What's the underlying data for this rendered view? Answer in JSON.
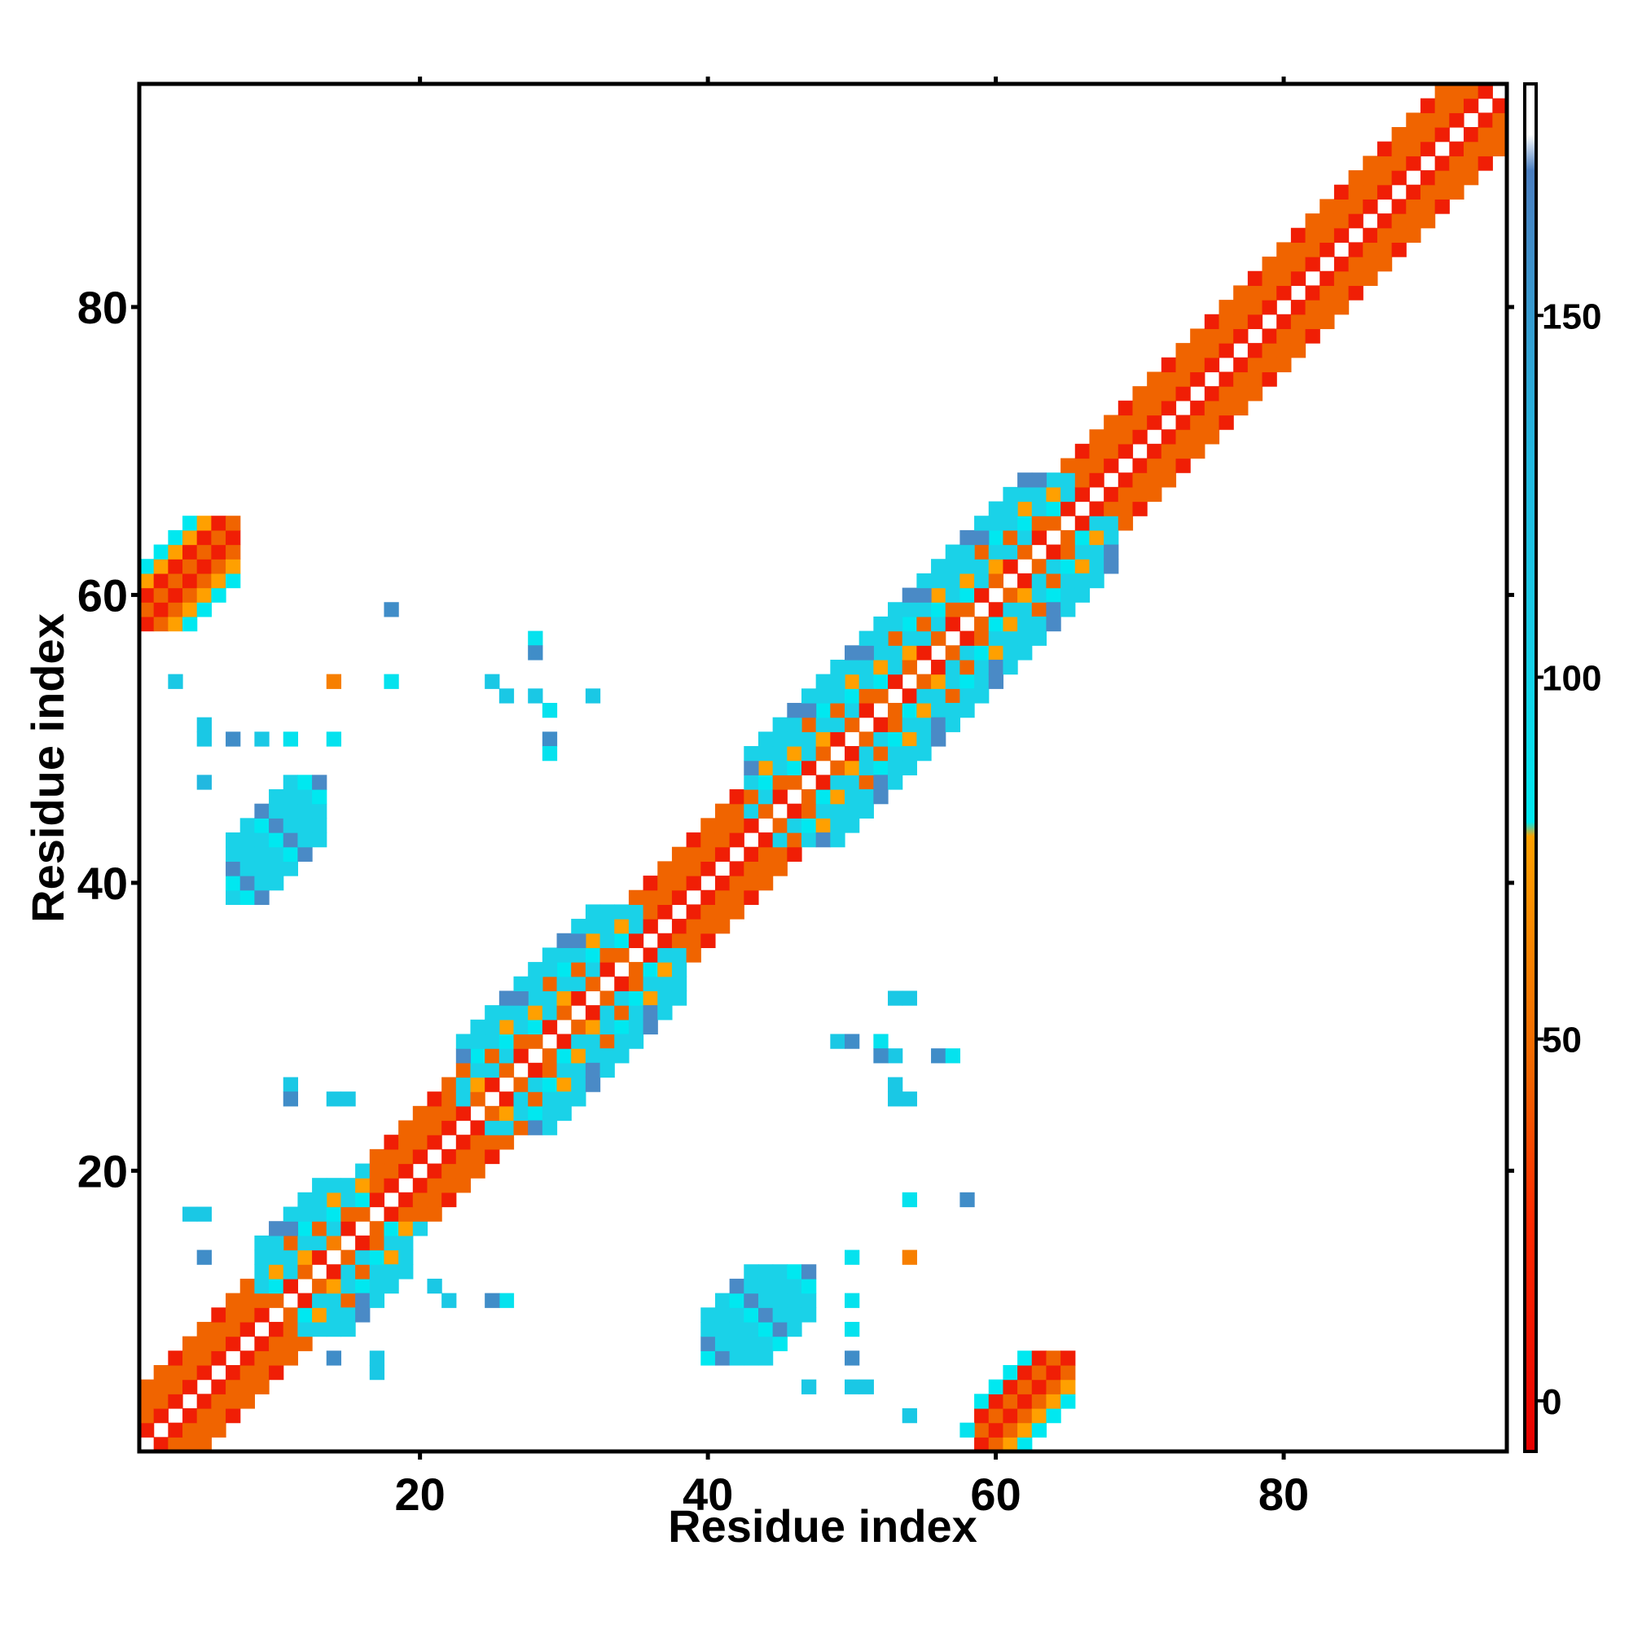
{
  "chart_data": {
    "type": "heatmap",
    "title": "",
    "xlabel": "Residue index",
    "ylabel": "Residue index",
    "xlim": [
      0.5,
      95.5
    ],
    "ylim": [
      0.5,
      95.5
    ],
    "x_ticks": [
      20,
      40,
      60,
      80
    ],
    "y_ticks": [
      20,
      40,
      60,
      80
    ],
    "colorbar": {
      "range": [
        -7,
        182
      ],
      "ticks": [
        0,
        50,
        100,
        150
      ],
      "stops": [
        {
          "v": -7,
          "c": "#e60000"
        },
        {
          "v": 25,
          "c": "#ff2a00"
        },
        {
          "v": 45,
          "c": "#f06400"
        },
        {
          "v": 78,
          "c": "#ffa000"
        },
        {
          "v": 80,
          "c": "#00e8f0"
        },
        {
          "v": 105,
          "c": "#18cce6"
        },
        {
          "v": 130,
          "c": "#22b8e0"
        },
        {
          "v": 170,
          "c": "#4a7ec0"
        },
        {
          "v": 175,
          "c": "#ffffff"
        },
        {
          "v": 182,
          "c": "#ffffff"
        }
      ]
    },
    "colors": {
      "red": "#f01e05",
      "orange": "#f06400",
      "amber": "#ffa000",
      "cyan": "#00e8f0",
      "lightblue": "#1ad2e8",
      "steelblue": "#4a8ac6"
    },
    "band_pattern": [
      {
        "d": 1,
        "c": "red"
      },
      {
        "d": 2,
        "c": "orange"
      },
      {
        "d": 3,
        "c": "orange"
      },
      {
        "d": 4,
        "c": "red"
      }
    ],
    "helix_segments": [
      [
        1,
        8
      ],
      [
        17,
        22
      ],
      [
        36,
        42
      ],
      [
        66,
        95
      ]
    ],
    "strand_segments": [
      [
        9,
        16
      ],
      [
        23,
        35
      ],
      [
        43,
        65
      ]
    ],
    "off_diagonal_blocks": [
      {
        "x": [
          1,
          7
        ],
        "y": [
          58,
          65
        ],
        "level": 15,
        "category": "contact"
      },
      {
        "x": [
          59,
          65
        ],
        "y": [
          1,
          7
        ],
        "level": 15,
        "category": "contact"
      },
      {
        "x": [
          7,
          13
        ],
        "y": [
          39,
          47
        ],
        "level": 110,
        "category": "contact"
      },
      {
        "x": [
          40,
          47
        ],
        "y": [
          7,
          13
        ],
        "level": 110,
        "category": "contact"
      }
    ],
    "scattered_cells": [
      {
        "x": 3,
        "y": 54,
        "level": 110
      },
      {
        "x": 5,
        "y": 51,
        "level": 110
      },
      {
        "x": 5,
        "y": 50,
        "level": 110
      },
      {
        "x": 7,
        "y": 50,
        "level": 160
      },
      {
        "x": 9,
        "y": 50,
        "level": 110
      },
      {
        "x": 11,
        "y": 50,
        "level": 85
      },
      {
        "x": 14,
        "y": 50,
        "level": 85
      },
      {
        "x": 14,
        "y": 54,
        "level": 60
      },
      {
        "x": 18,
        "y": 54,
        "level": 85
      },
      {
        "x": 18,
        "y": 59,
        "level": 160
      },
      {
        "x": 5,
        "y": 47,
        "level": 130
      },
      {
        "x": 28,
        "y": 57,
        "level": 85
      },
      {
        "x": 28,
        "y": 56,
        "level": 160
      },
      {
        "x": 25,
        "y": 54,
        "level": 110
      },
      {
        "x": 26,
        "y": 53,
        "level": 110
      },
      {
        "x": 28,
        "y": 53,
        "level": 110
      },
      {
        "x": 29,
        "y": 52,
        "level": 85
      },
      {
        "x": 32,
        "y": 53,
        "level": 110
      },
      {
        "x": 29,
        "y": 50,
        "level": 160
      },
      {
        "x": 29,
        "y": 49,
        "level": 85
      },
      {
        "x": 4,
        "y": 17,
        "level": 110
      },
      {
        "x": 5,
        "y": 17,
        "level": 110
      },
      {
        "x": 5,
        "y": 14,
        "level": 160
      },
      {
        "x": 11,
        "y": 26,
        "level": 110
      },
      {
        "x": 11,
        "y": 25,
        "level": 160
      },
      {
        "x": 14,
        "y": 25,
        "level": 110
      },
      {
        "x": 15,
        "y": 25,
        "level": 110
      },
      {
        "x": 14,
        "y": 15,
        "level": 60
      },
      {
        "x": 14,
        "y": 7,
        "level": 160
      },
      {
        "x": 17,
        "y": 7,
        "level": 110
      },
      {
        "x": 17,
        "y": 6,
        "level": 110
      },
      {
        "x": 26,
        "y": 11,
        "level": 85
      },
      {
        "x": 25,
        "y": 11,
        "level": 160
      },
      {
        "x": 22,
        "y": 11,
        "level": 110
      },
      {
        "x": 21,
        "y": 12,
        "level": 110
      },
      {
        "x": 54,
        "y": 32,
        "level": 110
      },
      {
        "x": 53,
        "y": 32,
        "level": 110
      },
      {
        "x": 49,
        "y": 29,
        "level": 110
      },
      {
        "x": 50,
        "y": 29,
        "level": 160
      },
      {
        "x": 52,
        "y": 29,
        "level": 85
      },
      {
        "x": 53,
        "y": 28,
        "level": 110
      },
      {
        "x": 52,
        "y": 28,
        "level": 160
      },
      {
        "x": 56,
        "y": 28,
        "level": 160
      },
      {
        "x": 57,
        "y": 28,
        "level": 85
      },
      {
        "x": 53,
        "y": 26,
        "level": 110
      },
      {
        "x": 53,
        "y": 25,
        "level": 110
      },
      {
        "x": 54,
        "y": 25,
        "level": 110
      },
      {
        "x": 54,
        "y": 18,
        "level": 85
      },
      {
        "x": 58,
        "y": 18,
        "level": 160
      },
      {
        "x": 50,
        "y": 14,
        "level": 85
      },
      {
        "x": 54,
        "y": 14,
        "level": 60
      },
      {
        "x": 50,
        "y": 11,
        "level": 85
      },
      {
        "x": 50,
        "y": 9,
        "level": 85
      },
      {
        "x": 50,
        "y": 7,
        "level": 160
      },
      {
        "x": 47,
        "y": 5,
        "level": 110
      },
      {
        "x": 50,
        "y": 5,
        "level": 110
      },
      {
        "x": 51,
        "y": 5,
        "level": 110
      },
      {
        "x": 54,
        "y": 3,
        "level": 110
      },
      {
        "x": 58,
        "y": 2,
        "level": 85
      }
    ]
  }
}
